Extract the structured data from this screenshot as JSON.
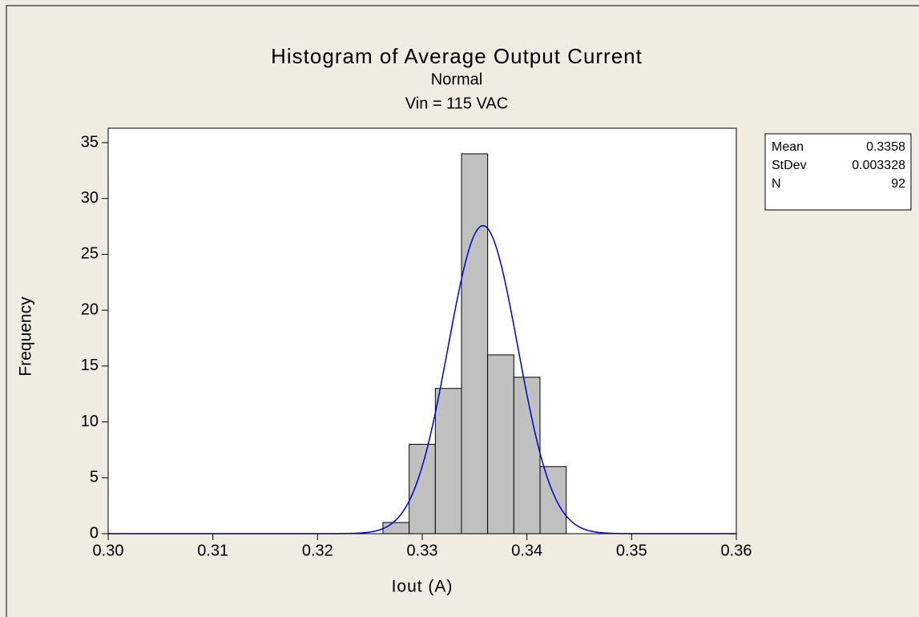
{
  "chart_data": {
    "type": "histogram",
    "title": "Histogram of Average Output Current",
    "subtitle": [
      "Normal",
      "Vin = 115 VAC"
    ],
    "xlabel": "Iout (A)",
    "ylabel": "Frequency",
    "bins": [
      0.32625,
      0.32875,
      0.33125,
      0.33375,
      0.33625,
      0.33875,
      0.34125,
      0.34375
    ],
    "counts": [
      1,
      8,
      13,
      34,
      16,
      14,
      6
    ],
    "color": "#c0c0c0",
    "curve_color": "#0000cc",
    "xlim": [
      0.3,
      0.36
    ],
    "xticks": [
      {
        "value": 0.3,
        "label": "0.30"
      },
      0.31,
      0.32,
      0.33,
      0.34,
      0.35,
      0.36
    ],
    "ylim": [
      0,
      35
    ],
    "yticks": [
      0,
      5,
      10,
      15,
      20,
      25,
      30,
      35
    ],
    "stats": [
      {
        "name": "Mean",
        "value": 0.3358
      },
      {
        "name": "StDev",
        "value": 0.003328
      },
      {
        "name": "N",
        "value": 92
      }
    ]
  }
}
